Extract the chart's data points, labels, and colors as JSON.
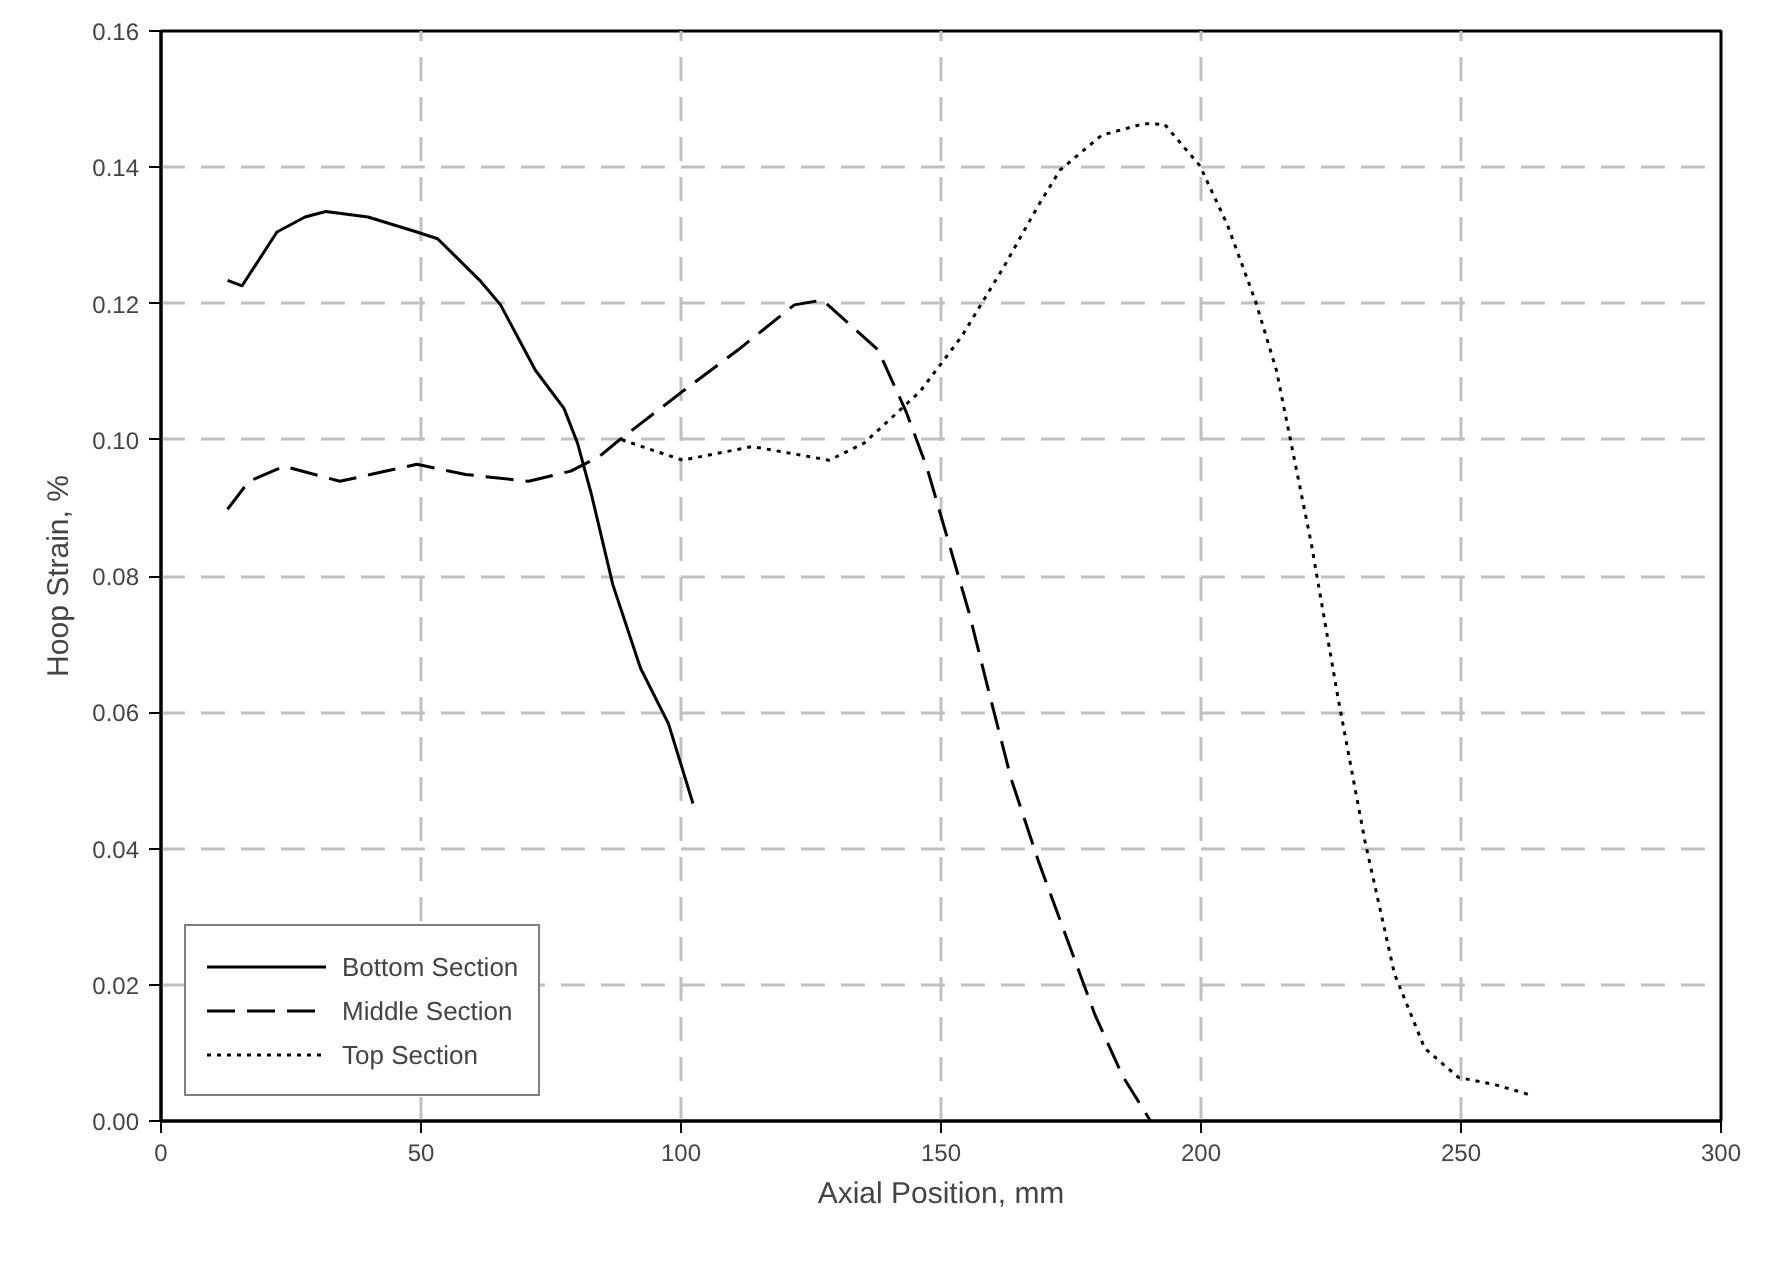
{
  "chart_data": {
    "type": "line",
    "xlabel": "Axial Position, mm",
    "ylabel": "Hoop Strain, %",
    "xlim": [
      0,
      300
    ],
    "ylim": [
      0,
      0.16
    ],
    "xticks": [
      0,
      50,
      100,
      150,
      200,
      250,
      300
    ],
    "yticks": [
      {
        "value": 0,
        "label": "0.00"
      },
      {
        "value": 0.02,
        "label": "0.02"
      },
      {
        "value": 0.04,
        "label": "0.04"
      },
      {
        "value": 0.06,
        "label": "0.06"
      },
      {
        "value": 0.08,
        "label": "0.08"
      },
      {
        "value": 0.1,
        "label": "0.10"
      },
      {
        "value": 0.12,
        "label": "0.12"
      },
      {
        "value": 0.14,
        "label": "0.14"
      },
      {
        "value": 0.16,
        "label": "0.16"
      }
    ],
    "grid": true,
    "legend": "bottom left",
    "marker": "none",
    "series": [
      {
        "name": "Bottom Section",
        "color": "#000000",
        "line_style": "solid",
        "x": [
          12.8,
          15.6,
          22.3,
          27.7,
          31.7,
          39.8,
          49.2,
          53.2,
          61.3,
          65.3,
          72,
          77.5,
          80.1,
          82.8,
          86.9,
          92.2,
          97.6,
          102.3
        ],
        "values": [
          0.1234,
          0.1226,
          0.1305,
          0.1327,
          0.1335,
          0.1327,
          0.1305,
          0.1295,
          0.1234,
          0.1198,
          0.1102,
          0.1046,
          0.0995,
          0.0919,
          0.0787,
          0.0665,
          0.0583,
          0.0466
        ]
      },
      {
        "name": "Middle Section",
        "color": "#000000",
        "line_style": "dashed",
        "x": [
          12.8,
          16.9,
          23.7,
          34.4,
          49.2,
          58.6,
          70.7,
          78.8,
          84.2,
          88.2,
          100.3,
          111,
          121.8,
          127.2,
          137.9,
          143.3,
          147.3,
          152.7,
          155.4,
          159.4,
          163.5,
          168.8,
          174.2,
          179.6,
          185,
          190.3
        ],
        "values": [
          0.0898,
          0.0939,
          0.0961,
          0.0939,
          0.0964,
          0.0949,
          0.0939,
          0.0954,
          0.0975,
          0.1,
          0.1071,
          0.1132,
          0.1198,
          0.1205,
          0.1132,
          0.1041,
          0.0959,
          0.0817,
          0.0746,
          0.0624,
          0.0502,
          0.038,
          0.0268,
          0.0156,
          0.0065,
          0
        ]
      },
      {
        "name": "Top Section",
        "color": "#000000",
        "line_style": "dotted",
        "x": [
          88.6,
          100.3,
          113.7,
          128.5,
          135.2,
          146,
          154,
          162.1,
          168.8,
          172.9,
          180.9,
          189,
          193,
          199.8,
          205.1,
          210.5,
          214.5,
          217.2,
          221.2,
          226.4,
          231.5,
          237.2,
          243,
          249.5,
          256.7,
          263.9
        ],
        "values": [
          0.1,
          0.097,
          0.099,
          0.097,
          0.0995,
          0.1071,
          0.1152,
          0.1254,
          0.1345,
          0.1396,
          0.1447,
          0.1464,
          0.1463,
          0.1402,
          0.1315,
          0.1203,
          0.1102,
          0.1,
          0.0848,
          0.0619,
          0.0412,
          0.0216,
          0.0107,
          0.0064,
          0.0053,
          0.0037
        ]
      }
    ]
  }
}
